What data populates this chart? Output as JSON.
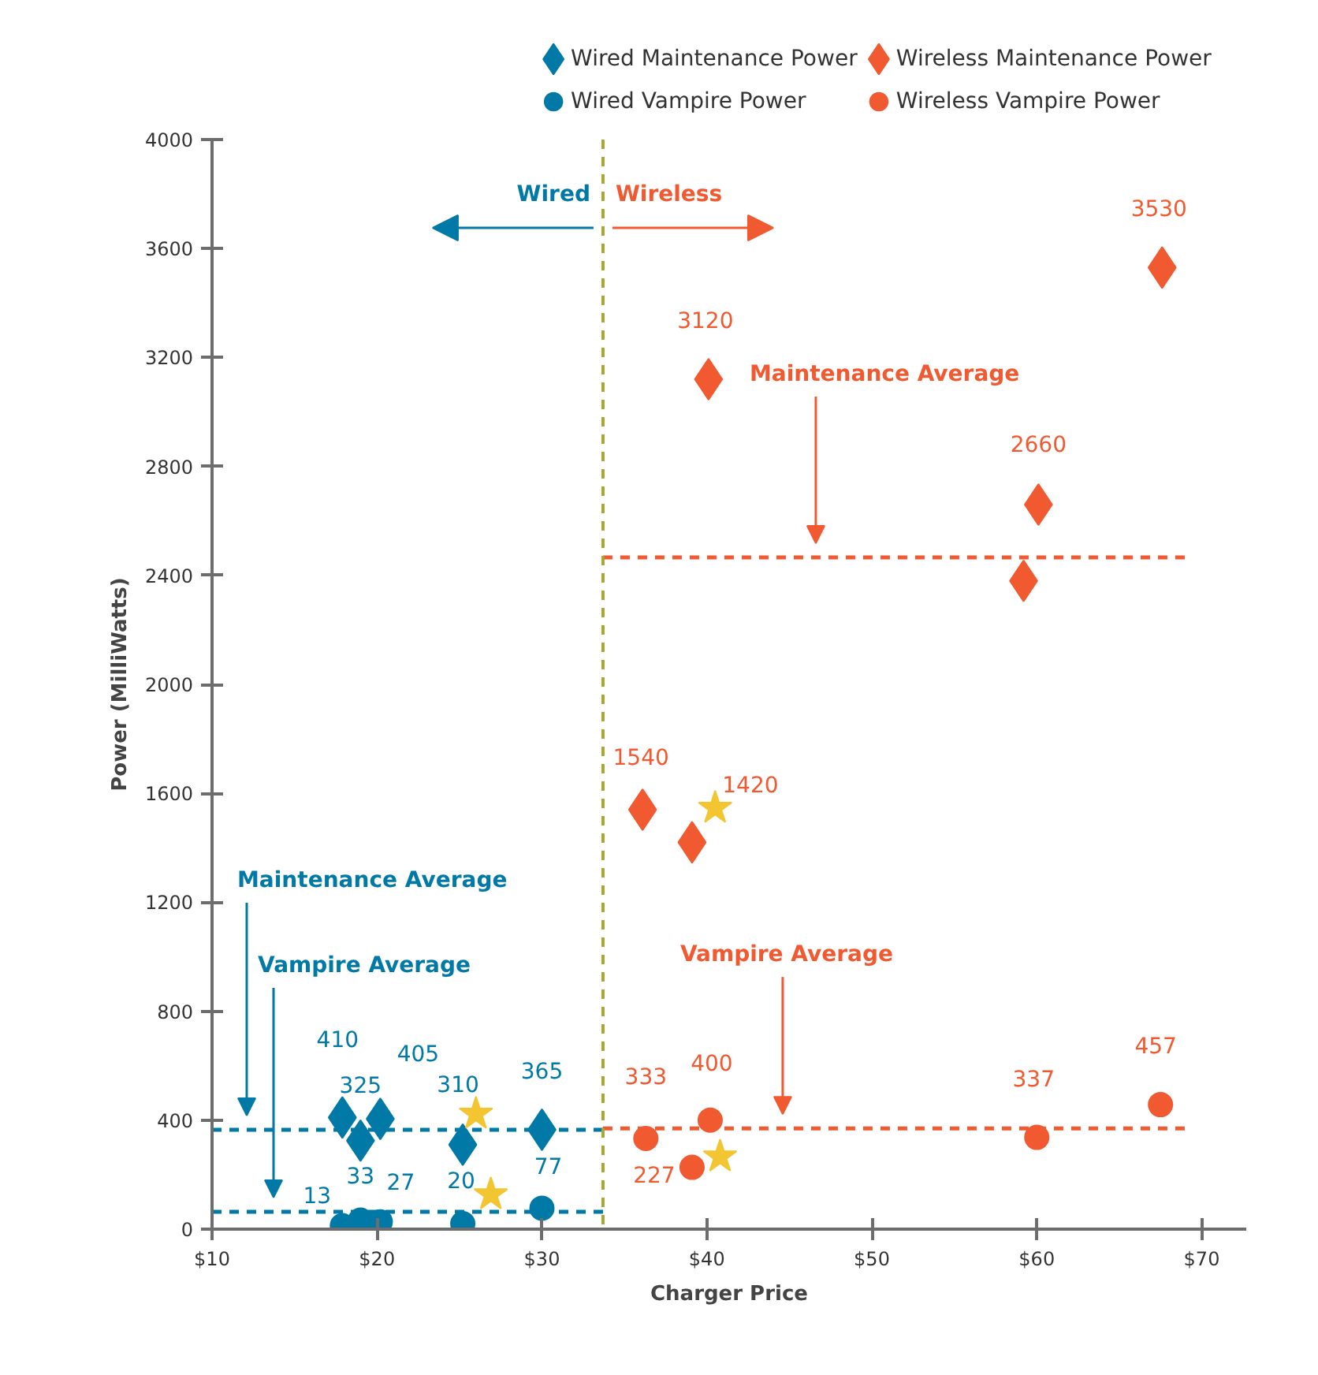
{
  "chart_data": {
    "type": "scatter",
    "xlabel": "Charger Price",
    "ylabel": "Power (MilliWatts)",
    "xlim": [
      10,
      72.7
    ],
    "ylim": [
      0,
      4000
    ],
    "xticks": [
      {
        "value": 10,
        "label": "$10"
      },
      {
        "value": 20,
        "label": "$20"
      },
      {
        "value": 30,
        "label": "$30"
      },
      {
        "value": 40,
        "label": "$40"
      },
      {
        "value": 50,
        "label": "$50"
      },
      {
        "value": 60,
        "label": "$60"
      },
      {
        "value": 70,
        "label": "$70"
      }
    ],
    "yticks": [
      0,
      400,
      800,
      1200,
      1600,
      2000,
      2400,
      2800,
      3200,
      3600,
      4000
    ],
    "grid": false,
    "legend": "top",
    "series": [
      {
        "name": "Wired Maintenance Power",
        "color": "#0079a6",
        "marker": "diamond",
        "x": [
          17.9,
          19.0,
          20.2,
          25.2,
          30.0
        ],
        "values": [
          410,
          325,
          405,
          310,
          365
        ],
        "value_labels": [
          "410",
          "325",
          "405",
          "310",
          "365"
        ]
      },
      {
        "name": "Wireless Maintenance Power",
        "color": "#f15a31",
        "marker": "diamond",
        "x": [
          36.1,
          39.1,
          40.1,
          60.1,
          59.2,
          67.6
        ],
        "values": [
          1540,
          1420,
          3120,
          2660,
          2380,
          3530
        ],
        "value_labels": [
          "1540",
          "1420",
          "3120",
          "2660",
          null,
          "3530"
        ]
      },
      {
        "name": "Wired Vampire Power",
        "color": "#0079a6",
        "marker": "circle",
        "x": [
          17.9,
          19.0,
          20.2,
          25.2,
          30.0
        ],
        "values": [
          13,
          33,
          27,
          20,
          77
        ],
        "value_labels": [
          "13",
          "33",
          "27",
          "20",
          "77"
        ]
      },
      {
        "name": "Wireless Vampire Power",
        "color": "#f15a31",
        "marker": "circle",
        "x": [
          36.3,
          39.1,
          40.2,
          60.0,
          67.5
        ],
        "values": [
          333,
          227,
          400,
          337,
          457
        ],
        "value_labels": [
          "333",
          "227",
          "400",
          "337",
          "457"
        ]
      },
      {
        "color": "#f2c531",
        "marker": "star",
        "x": [
          26.0,
          26.9,
          40.5,
          40.8
        ],
        "values": [
          423,
          127,
          1546,
          266
        ]
      }
    ],
    "ref_lines": [
      {
        "axis": "x",
        "value": 33.7,
        "color": "#a6a832",
        "line_style": "dashed"
      },
      {
        "axis": "y",
        "value": 365,
        "label": "Maintenance Average",
        "color": "#0079a6",
        "line_style": "dashed"
      },
      {
        "axis": "y",
        "value": 64,
        "label": "Vampire Average",
        "color": "#0079a6",
        "line_style": "dashed"
      },
      {
        "axis": "y",
        "value": 2466,
        "label": "Maintenance Average",
        "color": "#f15a31",
        "line_style": "dashed"
      },
      {
        "axis": "y",
        "value": 370,
        "label": "Vampire Average",
        "color": "#f15a31",
        "line_style": "dashed"
      }
    ],
    "annotations": [
      "Wired",
      "Wireless"
    ]
  }
}
